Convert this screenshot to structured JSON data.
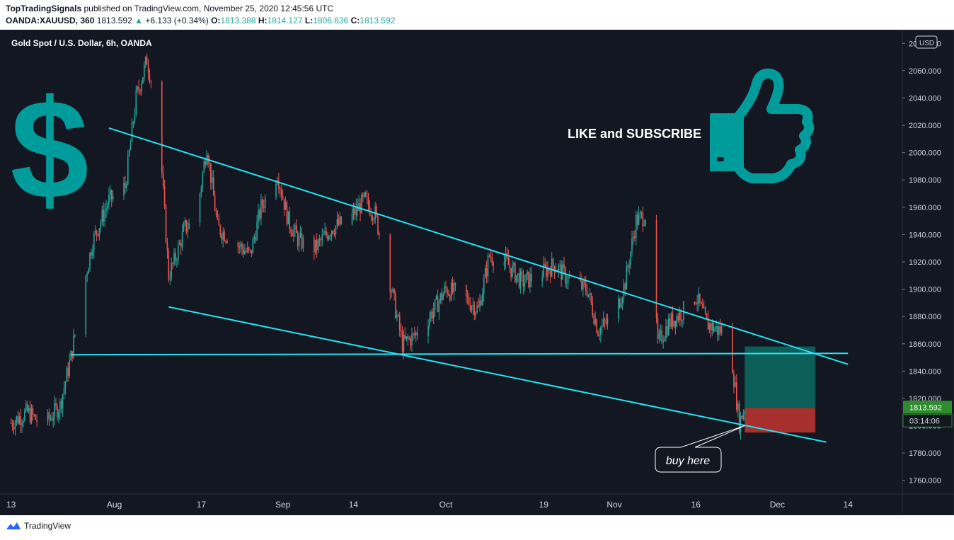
{
  "header": {
    "author": "TopTradingSignals",
    "published": "published on TradingView.com, November 25, 2020 12:45:56 UTC",
    "symbol_line": "OANDA:XAUUSD, 360",
    "last": "1813.592",
    "change_arrow": "▲",
    "change": "+6.133 (+0.34%)",
    "o_label": "O:",
    "o_value": "1813.388",
    "h_label": "H:",
    "h_value": "1814.127",
    "l_label": "L:",
    "l_value": "1806.636",
    "c_label": "C:",
    "c_value": "1813.592"
  },
  "footer": {
    "brand": "TradingView"
  },
  "colors": {
    "background": "#131722",
    "up": "#26a69a",
    "down": "#ef5350",
    "trendline": "#22e4f2",
    "accent_teal": "#009c9c",
    "target_zone": "#0c5f59",
    "stop_zone": "#a5302d",
    "price_label": "#2e8b2e"
  },
  "chart_data": {
    "type": "candlestick",
    "title": "Gold Spot / U.S. Dollar, 6h, OANDA",
    "currency": "USD",
    "ylim": [
      1750,
      2090
    ],
    "y_ticks": [
      "2080.000",
      "2060.000",
      "2040.000",
      "2020.000",
      "2000.000",
      "1980.000",
      "1960.000",
      "1940.000",
      "1920.000",
      "1900.000",
      "1880.000",
      "1860.000",
      "1840.000",
      "1820.000",
      "1800.000",
      "1780.000",
      "1760.000"
    ],
    "x_ticks": [
      "13",
      "Aug",
      "17",
      "Sep",
      "14",
      "Oct",
      "19",
      "Nov",
      "16",
      "Dec",
      "14"
    ],
    "last_price": "1813.592",
    "countdown": "03:14:06",
    "price_path": [
      [
        "2020-07-13",
        1802
      ],
      [
        "2020-07-16",
        1810
      ],
      [
        "2020-07-19",
        1800
      ],
      [
        "2020-07-22",
        1815
      ],
      [
        "2020-07-24",
        1850
      ],
      [
        "2020-07-26",
        1895
      ],
      [
        "2020-07-28",
        1935
      ],
      [
        "2020-07-31",
        1965
      ],
      [
        "2020-08-03",
        1975
      ],
      [
        "2020-08-05",
        2040
      ],
      [
        "2020-08-07",
        2068
      ],
      [
        "2020-08-09",
        2030
      ],
      [
        "2020-08-11",
        1910
      ],
      [
        "2020-08-12",
        1920
      ],
      [
        "2020-08-14",
        1945
      ],
      [
        "2020-08-16",
        1950
      ],
      [
        "2020-08-18",
        2005
      ],
      [
        "2020-08-20",
        1945
      ],
      [
        "2020-08-23",
        1935
      ],
      [
        "2020-08-26",
        1925
      ],
      [
        "2020-08-28",
        1960
      ],
      [
        "2020-08-31",
        1985
      ],
      [
        "2020-09-02",
        1950
      ],
      [
        "2020-09-04",
        1935
      ],
      [
        "2020-09-07",
        1930
      ],
      [
        "2020-09-10",
        1945
      ],
      [
        "2020-09-13",
        1950
      ],
      [
        "2020-09-16",
        1965
      ],
      [
        "2020-09-18",
        1955
      ],
      [
        "2020-09-21",
        1900
      ],
      [
        "2020-09-23",
        1860
      ],
      [
        "2020-09-25",
        1865
      ],
      [
        "2020-09-28",
        1880
      ],
      [
        "2020-10-01",
        1900
      ],
      [
        "2020-10-04",
        1895
      ],
      [
        "2020-10-07",
        1885
      ],
      [
        "2020-10-09",
        1925
      ],
      [
        "2020-10-12",
        1920
      ],
      [
        "2020-10-15",
        1905
      ],
      [
        "2020-10-18",
        1910
      ],
      [
        "2020-10-21",
        1918
      ],
      [
        "2020-10-24",
        1905
      ],
      [
        "2020-10-27",
        1900
      ],
      [
        "2020-10-29",
        1870
      ],
      [
        "2020-11-01",
        1880
      ],
      [
        "2020-11-03",
        1905
      ],
      [
        "2020-11-05",
        1950
      ],
      [
        "2020-11-07",
        1955
      ],
      [
        "2020-11-09",
        1860
      ],
      [
        "2020-11-11",
        1875
      ],
      [
        "2020-11-14",
        1885
      ],
      [
        "2020-11-16",
        1895
      ],
      [
        "2020-11-18",
        1875
      ],
      [
        "2020-11-20",
        1870
      ],
      [
        "2020-11-22",
        1870
      ],
      [
        "2020-11-23",
        1835
      ],
      [
        "2020-11-24",
        1802
      ],
      [
        "2020-11-25",
        1813.592
      ]
    ],
    "lines": [
      {
        "name": "upper trendline",
        "from": [
          "2020-07-31",
          2018
        ],
        "to": [
          "2020-12-14",
          1845
        ]
      },
      {
        "name": "lower trendline",
        "from": [
          "2020-08-11",
          1887
        ],
        "to": [
          "2020-12-10",
          1788
        ]
      },
      {
        "name": "horizontal support",
        "from": [
          "2020-07-24",
          1852
        ],
        "to": [
          "2020-12-14",
          1853
        ]
      }
    ],
    "position": {
      "entry": 1813,
      "target": 1858,
      "stop": 1795,
      "from": "2020-11-25",
      "to": "2020-12-08"
    },
    "annotations": {
      "like": "LIKE and SUBSCRIBE",
      "callout": "buy here",
      "dollar": "$"
    }
  }
}
